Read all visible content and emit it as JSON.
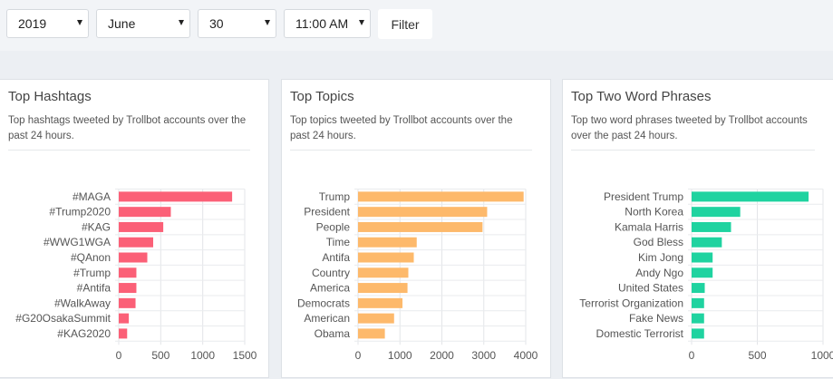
{
  "filters": {
    "year": "2019",
    "month": "June",
    "day": "30",
    "time": "11:00 AM",
    "filter_label": "Filter"
  },
  "colors": {
    "hashtags": "#fb6077",
    "topics": "#fdb96b",
    "phrases": "#1fd3a0"
  },
  "panels": [
    {
      "title": "Top Hashtags",
      "subtitle": "Top hashtags tweeted by Trollbot accounts over the past 24 hours."
    },
    {
      "title": "Top Topics",
      "subtitle": "Top topics tweeted by Trollbot accounts over the past 24 hours."
    },
    {
      "title": "Top Two Word Phrases",
      "subtitle": "Top two word phrases tweeted by Trollbot accounts over the past 24 hours."
    }
  ],
  "chart_data": [
    {
      "type": "bar",
      "orientation": "horizontal",
      "categories": [
        "#MAGA",
        "#Trump2020",
        "#KAG",
        "#WWG1WGA",
        "#QAnon",
        "#Trump",
        "#Antifa",
        "#WalkAway",
        "#G20OsakaSummit",
        "#KAG2020"
      ],
      "values": [
        1350,
        620,
        530,
        410,
        340,
        210,
        210,
        200,
        120,
        100
      ],
      "xlim": [
        0,
        1500
      ],
      "xticks": [
        0,
        500,
        1000,
        1500
      ],
      "grid": true
    },
    {
      "type": "bar",
      "orientation": "horizontal",
      "categories": [
        "Trump",
        "President",
        "People",
        "Time",
        "Antifa",
        "Country",
        "America",
        "Democrats",
        "American",
        "Obama"
      ],
      "values": [
        3950,
        3080,
        2970,
        1400,
        1330,
        1200,
        1180,
        1060,
        860,
        640
      ],
      "xlim": [
        0,
        4000
      ],
      "xticks": [
        0,
        1000,
        2000,
        3000,
        4000
      ],
      "grid": true
    },
    {
      "type": "bar",
      "orientation": "horizontal",
      "categories": [
        "President Trump",
        "North Korea",
        "Kamala Harris",
        "God Bless",
        "Kim Jong",
        "Andy Ngo",
        "United States",
        "Terrorist Organization",
        "Fake News",
        "Domestic Terrorist"
      ],
      "values": [
        890,
        370,
        300,
        230,
        160,
        160,
        100,
        95,
        95,
        95
      ],
      "xlim": [
        0,
        1000
      ],
      "xticks": [
        0,
        500,
        1000
      ],
      "grid": true
    }
  ]
}
